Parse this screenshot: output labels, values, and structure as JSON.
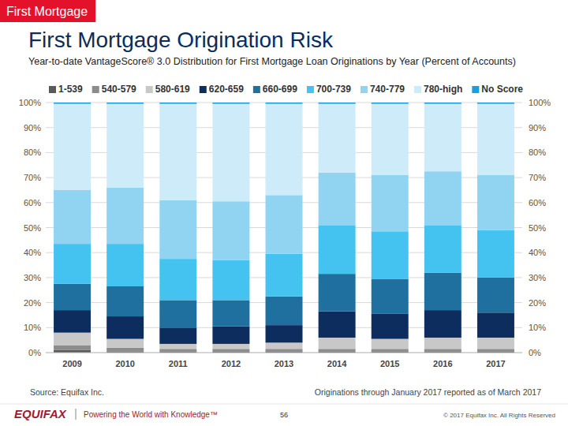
{
  "chart_data": {
    "type": "bar",
    "stacked": true,
    "grid": true,
    "legend": "top",
    "header": "First Mortgage",
    "title": "First Mortgage Origination Risk",
    "subtitle": "Year-to-date VantageScore® 3.0 Distribution for First Mortgage Loan Originations by Year (Percent of Accounts)",
    "source": "Source: Equifax Inc.",
    "note": "Originations through January 2017 reported as of March 2017",
    "footer_logo": "EQUIFAX",
    "footer_tagline": "Powering the World with Knowledge™",
    "page": "56",
    "copyright": "© 2017 Equifax Inc. All Rights Reserved",
    "categories": [
      "2009",
      "2010",
      "2011",
      "2012",
      "2013",
      "2014",
      "2015",
      "2016",
      "2017"
    ],
    "ylim": [
      0,
      100
    ],
    "yticks": [
      {
        "value": 0,
        "label": "0%"
      },
      {
        "value": 10,
        "label": "10%"
      },
      {
        "value": 20,
        "label": "20%"
      },
      {
        "value": 30,
        "label": "30%"
      },
      {
        "value": 40,
        "label": "40%"
      },
      {
        "value": 50,
        "label": "50%"
      },
      {
        "value": 60,
        "label": "60%"
      },
      {
        "value": 70,
        "label": "70%"
      },
      {
        "value": 80,
        "label": "80%"
      },
      {
        "value": 90,
        "label": "90%"
      },
      {
        "value": 100,
        "label": "100%"
      }
    ],
    "series": [
      {
        "name": "1-539",
        "color": "#595959",
        "values": [
          1.0,
          0.5,
          0.5,
          0.5,
          0.5,
          0.5,
          0.5,
          0.5,
          0.5
        ]
      },
      {
        "name": "540-579",
        "color": "#8c8c8c",
        "values": [
          2.0,
          1.5,
          1.0,
          1.0,
          1.0,
          1.0,
          1.0,
          1.0,
          1.0
        ]
      },
      {
        "name": "580-619",
        "color": "#c8c8c8",
        "values": [
          5.0,
          3.5,
          2.0,
          2.0,
          2.5,
          4.5,
          4.0,
          4.5,
          4.5
        ]
      },
      {
        "name": "620-659",
        "color": "#0d2d5e",
        "values": [
          9.0,
          9.0,
          6.5,
          7.0,
          7.0,
          10.5,
          10.0,
          11.0,
          10.0
        ]
      },
      {
        "name": "660-699",
        "color": "#1f6f9f",
        "values": [
          10.5,
          12.0,
          11.0,
          10.5,
          11.5,
          15.0,
          14.0,
          15.0,
          14.0
        ]
      },
      {
        "name": "700-739",
        "color": "#45c3f0",
        "values": [
          16.0,
          17.0,
          16.5,
          16.0,
          17.0,
          19.5,
          19.0,
          19.0,
          19.0
        ]
      },
      {
        "name": "740-779",
        "color": "#91d4f2",
        "values": [
          21.5,
          22.5,
          23.5,
          23.5,
          23.5,
          21.0,
          22.5,
          21.5,
          22.0
        ]
      },
      {
        "name": "780-high",
        "color": "#cdebf8",
        "values": [
          34.5,
          33.5,
          38.5,
          39.0,
          36.5,
          27.5,
          28.5,
          27.0,
          28.5
        ]
      },
      {
        "name": "No Score",
        "color": "#1b9de0",
        "values": [
          0.5,
          0.5,
          0.5,
          0.5,
          0.5,
          0.5,
          0.5,
          0.5,
          0.5
        ]
      }
    ]
  }
}
